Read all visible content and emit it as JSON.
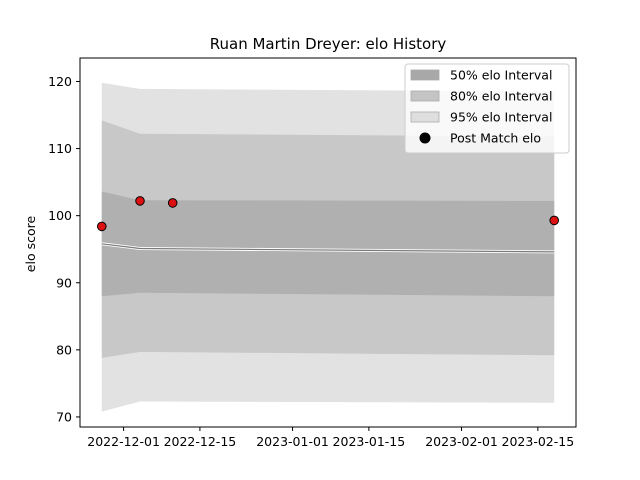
{
  "chart_data": {
    "type": "area",
    "title": "Ruan Martin Dreyer: elo History",
    "xlabel": "",
    "ylabel": "elo score",
    "x_ticks": [
      "2022-12-01",
      "2022-12-15",
      "2023-01-01",
      "2023-01-15",
      "2023-02-01",
      "2023-02-15"
    ],
    "xlim": [
      "2022-11-23",
      "2023-02-22"
    ],
    "y_ticks": [
      70,
      80,
      90,
      100,
      110,
      120
    ],
    "ylim": [
      68.5,
      123.5
    ],
    "grid": false,
    "legend_position": "top-right",
    "x": [
      "2022-11-27",
      "2022-12-04",
      "2023-02-18"
    ],
    "mean": [
      95.8,
      95.1,
      94.6
    ],
    "series": [
      {
        "name": "50% elo Interval",
        "color": "#b0b0b0",
        "lower": [
          88.0,
          88.5,
          88.0
        ],
        "upper": [
          103.6,
          102.3,
          102.2
        ]
      },
      {
        "name": "80% elo Interval",
        "color": "#c8c8c8",
        "lower": [
          78.8,
          79.7,
          79.2
        ],
        "upper": [
          114.2,
          112.2,
          111.8
        ]
      },
      {
        "name": "95% elo Interval",
        "color": "#e2e2e2",
        "lower": [
          70.8,
          72.3,
          72.1
        ],
        "upper": [
          119.8,
          118.9,
          118.5
        ]
      }
    ],
    "points": {
      "name": "Post Match elo",
      "color": "#dd1111",
      "x": [
        "2022-11-27",
        "2022-12-04",
        "2022-12-10",
        "2023-02-18"
      ],
      "y": [
        98.4,
        102.2,
        101.9,
        99.3
      ]
    }
  }
}
